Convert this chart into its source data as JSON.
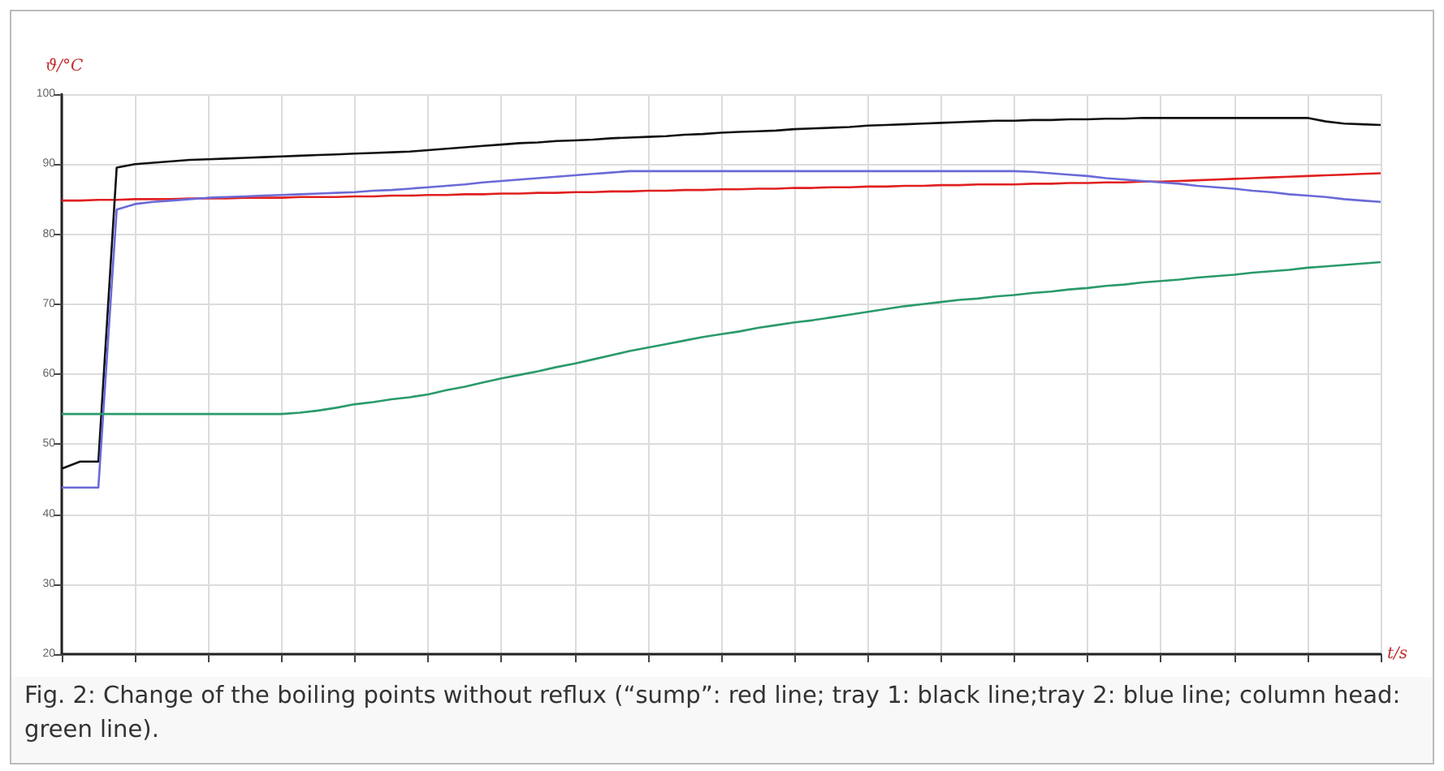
{
  "chart_data": {
    "type": "line",
    "xlabel": "t/s",
    "ylabel": "ϑ/°C",
    "annotations": [
      "Fig. 2: Change of the boiling points without reflux (“sump”: red line; tray 1: black line;tray 2: blue line; column head: green line)."
    ],
    "categories": [
      null,
      null,
      null,
      null,
      null,
      null,
      null,
      null,
      null,
      null,
      null,
      null,
      null,
      null,
      null,
      null,
      null,
      null,
      null,
      null,
      null,
      null,
      null,
      null,
      null,
      null,
      null,
      null,
      null,
      null,
      null,
      null,
      null,
      null,
      null,
      null,
      null,
      null,
      null,
      null,
      null,
      null,
      null,
      null,
      null,
      null,
      null,
      null,
      null,
      null,
      null,
      null,
      null,
      null,
      null,
      null,
      null,
      null,
      null,
      null,
      null,
      null,
      null,
      null,
      null,
      null,
      null,
      null,
      null,
      null,
      null,
      null,
      null
    ],
    "series": [
      {
        "color": "#e02020",
        "values": [
          84.8,
          84.8,
          84.9,
          84.9,
          85.0,
          85.0,
          85.0,
          85.1,
          85.1,
          85.1,
          85.2,
          85.2,
          85.2,
          85.3,
          85.3,
          85.3,
          85.4,
          85.4,
          85.5,
          85.5,
          85.6,
          85.6,
          85.7,
          85.7,
          85.8,
          85.8,
          85.9,
          85.9,
          86.0,
          86.0,
          86.1,
          86.1,
          86.2,
          86.2,
          86.3,
          86.3,
          86.4,
          86.4,
          86.5,
          86.5,
          86.6,
          86.6,
          86.7,
          86.7,
          86.8,
          86.8,
          86.9,
          86.9,
          87.0,
          87.0,
          87.1,
          87.1,
          87.1,
          87.2,
          87.2,
          87.3,
          87.3,
          87.4,
          87.4,
          87.5,
          87.5,
          87.6,
          87.7,
          87.8,
          87.9,
          88.0,
          88.1,
          88.2,
          88.3,
          88.4,
          88.5,
          88.6,
          88.7
        ]
      },
      {
        "color": "#111111",
        "values": [
          46.5,
          47.5,
          47.5,
          89.5,
          90.0,
          90.2,
          90.4,
          90.6,
          90.7,
          90.8,
          90.9,
          91.0,
          91.1,
          91.2,
          91.3,
          91.4,
          91.5,
          91.6,
          91.7,
          91.8,
          92.0,
          92.2,
          92.4,
          92.6,
          92.8,
          93.0,
          93.1,
          93.3,
          93.4,
          93.5,
          93.7,
          93.8,
          93.9,
          94.0,
          94.2,
          94.3,
          94.5,
          94.6,
          94.7,
          94.8,
          95.0,
          95.1,
          95.2,
          95.3,
          95.5,
          95.6,
          95.7,
          95.8,
          95.9,
          96.0,
          96.1,
          96.2,
          96.2,
          96.3,
          96.3,
          96.4,
          96.4,
          96.5,
          96.5,
          96.6,
          96.6,
          96.6,
          96.6,
          96.6,
          96.6,
          96.6,
          96.6,
          96.6,
          96.6,
          96.1,
          95.8,
          95.7,
          95.6
        ]
      },
      {
        "color": "#6a6ad8",
        "values": [
          43.8,
          43.8,
          43.8,
          83.5,
          84.3,
          84.6,
          84.8,
          85.0,
          85.2,
          85.3,
          85.4,
          85.5,
          85.6,
          85.7,
          85.8,
          85.9,
          86.0,
          86.2,
          86.3,
          86.5,
          86.7,
          86.9,
          87.1,
          87.4,
          87.6,
          87.8,
          88.0,
          88.2,
          88.4,
          88.6,
          88.8,
          89.0,
          89.0,
          89.0,
          89.0,
          89.0,
          89.0,
          89.0,
          89.0,
          89.0,
          89.0,
          89.0,
          89.0,
          89.0,
          89.0,
          89.0,
          89.0,
          89.0,
          89.0,
          89.0,
          89.0,
          89.0,
          89.0,
          88.9,
          88.7,
          88.5,
          88.3,
          88.0,
          87.8,
          87.6,
          87.4,
          87.2,
          86.9,
          86.7,
          86.5,
          86.2,
          86.0,
          85.7,
          85.5,
          85.3,
          85.0,
          84.8,
          84.6
        ]
      },
      {
        "color": "#2a9a6a",
        "values": [
          54.3,
          54.3,
          54.3,
          54.3,
          54.3,
          54.3,
          54.3,
          54.3,
          54.3,
          54.3,
          54.3,
          54.3,
          54.3,
          54.5,
          54.8,
          55.2,
          55.7,
          56.0,
          56.4,
          56.7,
          57.1,
          57.7,
          58.2,
          58.8,
          59.4,
          59.9,
          60.4,
          61.0,
          61.5,
          62.1,
          62.7,
          63.3,
          63.8,
          64.3,
          64.8,
          65.3,
          65.7,
          66.1,
          66.6,
          67.0,
          67.4,
          67.7,
          68.1,
          68.5,
          68.9,
          69.3,
          69.7,
          70.0,
          70.3,
          70.6,
          70.8,
          71.1,
          71.3,
          71.6,
          71.8,
          72.1,
          72.3,
          72.6,
          72.8,
          73.1,
          73.3,
          73.5,
          73.8,
          74.0,
          74.2,
          74.5,
          74.7,
          74.9,
          75.2,
          75.4,
          75.6,
          75.8,
          76.0
        ]
      }
    ],
    "ylim": [
      20,
      100
    ],
    "yticks": [
      20,
      30,
      40,
      50,
      60,
      70,
      80,
      90,
      100
    ],
    "grid": true
  }
}
